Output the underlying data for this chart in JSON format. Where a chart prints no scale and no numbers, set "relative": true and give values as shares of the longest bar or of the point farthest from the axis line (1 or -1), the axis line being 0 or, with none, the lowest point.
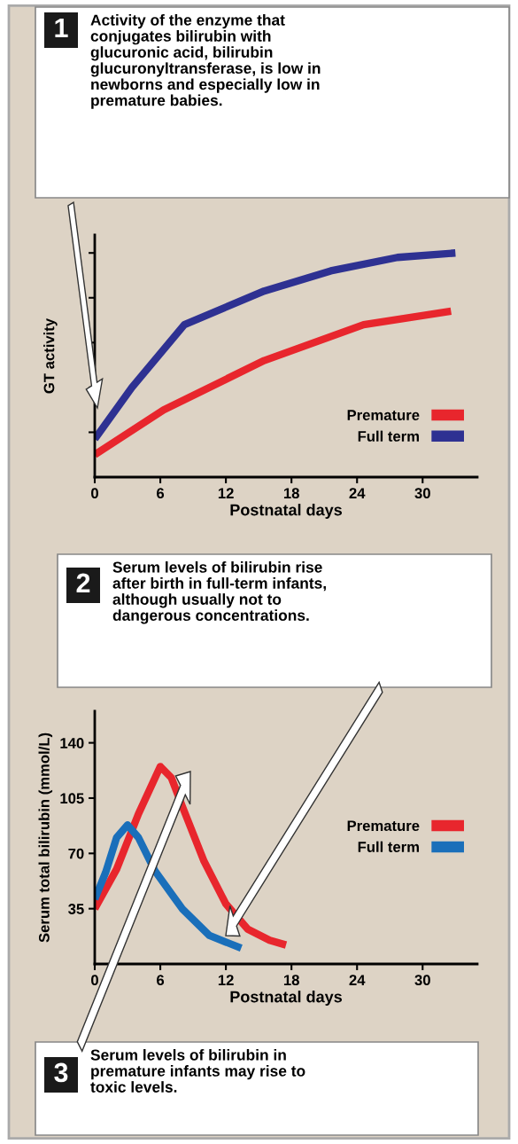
{
  "chart_data": [
    {
      "type": "line",
      "relative": true,
      "ylabel": "GT activity",
      "xlabel": "Postnatal days",
      "xlim": [
        0,
        35
      ],
      "xticks": [
        0,
        6,
        12,
        18,
        24,
        30
      ],
      "legend": "bottom right",
      "annotations": [
        "1",
        "Activity of the enzyme that\nconjugates bilirubin with\nglucuronic acid, bilirubin\nglucuronyltransferase, is low in\nnewborns and especially low in\npremature babies."
      ],
      "series": [
        {
          "name": "Premature",
          "color": "#e8262d",
          "x": [
            0,
            6.3,
            15.5,
            24.6,
            32.6
          ],
          "values": [
            0.1,
            0.3,
            0.52,
            0.68,
            0.74
          ]
        },
        {
          "name": "Full term",
          "color": "#2e3192",
          "x": [
            0,
            3.4,
            8.2,
            15.5,
            21.6,
            27.7,
            33
          ],
          "values": [
            0.17,
            0.4,
            0.68,
            0.83,
            0.92,
            0.98,
            1.0
          ]
        }
      ]
    },
    {
      "type": "line",
      "ylabel": "Serum total bilirubin (mmol/L)",
      "xlabel": "Postnatal days",
      "xlim": [
        0,
        35
      ],
      "xticks": [
        0,
        6,
        12,
        18,
        24,
        30
      ],
      "ylim": [
        0,
        160
      ],
      "yticks": [
        35,
        70,
        105,
        140
      ],
      "legend": "right",
      "annotations": [
        "2",
        "Serum levels of bilirubin rise\nafter birth in full-term infants,\nalthough usually not to\ndangerous concentrations.",
        "3",
        "Serum levels of bilirubin in\npremature infants may rise to\ntoxic levels."
      ],
      "series": [
        {
          "name": "Premature",
          "color": "#e8262d",
          "x": [
            0,
            2,
            4,
            6,
            7,
            8,
            10,
            12,
            14,
            16,
            17.5
          ],
          "values": [
            35,
            60,
            95,
            125,
            118,
            100,
            65,
            38,
            22,
            15,
            12
          ]
        },
        {
          "name": "Full term",
          "color": "#1a6fba",
          "x": [
            0,
            1,
            2,
            3,
            4,
            5.5,
            8,
            10.5,
            13.4
          ],
          "values": [
            41,
            58,
            80,
            88,
            80,
            59,
            35,
            18,
            10
          ]
        }
      ]
    }
  ]
}
